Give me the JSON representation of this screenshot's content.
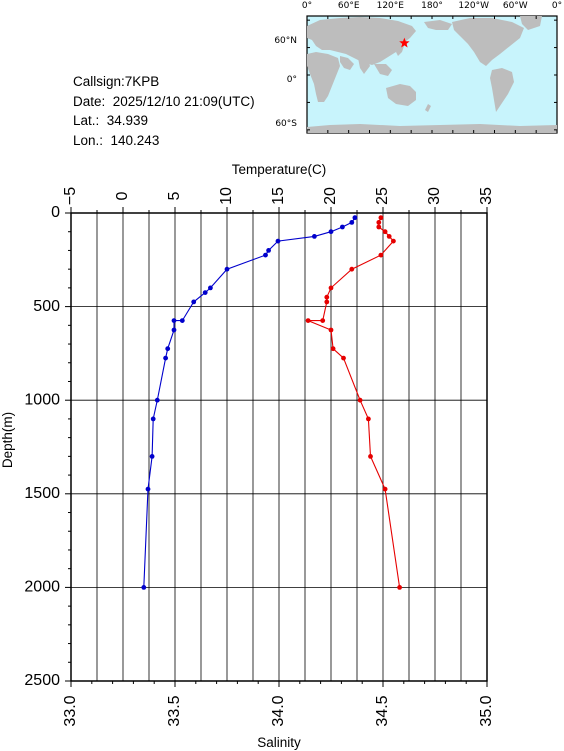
{
  "info": {
    "callsign": "Callsign:7KPB",
    "date": "Date:  2025/12/10 21:09(UTC)",
    "lat": "Lat.:  34.939",
    "lon": "Lon.:  140.243"
  },
  "map": {
    "lon_labels": [
      "0°",
      "60°E",
      "120°E",
      "180°",
      "120°W",
      "60°W",
      "0°"
    ],
    "lat_labels": [
      "60°N",
      "0°",
      "60°S"
    ],
    "ocean_color": "#c8f4fc",
    "land_color": "#bdbdbd",
    "marker_color": "#ff0000",
    "marker_lon": 140.243,
    "marker_lat": 34.939
  },
  "chart_data": {
    "type": "line",
    "title": "",
    "x_top_label": "Temperature(C)",
    "x_bottom_label": "Salinity",
    "ylabel": "Depth(m)",
    "y_reversed": true,
    "ylim": [
      0,
      2500
    ],
    "y_ticks": [
      "0",
      "500",
      "1000",
      "1500",
      "2000",
      "2500"
    ],
    "x_top_lim": [
      -5,
      35
    ],
    "x_top_ticks": [
      "−5",
      "0",
      "5",
      "10",
      "15",
      "20",
      "25",
      "30",
      "35"
    ],
    "x_bottom_lim": [
      33.0,
      35.0
    ],
    "x_bottom_ticks": [
      "33.0",
      "33.5",
      "34.0",
      "34.5",
      "35.0"
    ],
    "grid": true,
    "series": [
      {
        "axis": "temperature",
        "color": "#0000cc",
        "points": [
          {
            "t": 22.3,
            "d": 25
          },
          {
            "t": 22.0,
            "d": 50
          },
          {
            "t": 21.1,
            "d": 75
          },
          {
            "t": 20.0,
            "d": 100
          },
          {
            "t": 18.4,
            "d": 125
          },
          {
            "t": 14.9,
            "d": 150
          },
          {
            "t": 14.0,
            "d": 200
          },
          {
            "t": 13.7,
            "d": 225
          },
          {
            "t": 10.0,
            "d": 300
          },
          {
            "t": 8.4,
            "d": 400
          },
          {
            "t": 7.9,
            "d": 425
          },
          {
            "t": 6.8,
            "d": 475
          },
          {
            "t": 5.7,
            "d": 575
          },
          {
            "t": 4.9,
            "d": 575
          },
          {
            "t": 4.9,
            "d": 625
          },
          {
            "t": 4.3,
            "d": 725
          },
          {
            "t": 4.1,
            "d": 775
          },
          {
            "t": 3.3,
            "d": 1000
          },
          {
            "t": 2.9,
            "d": 1100
          },
          {
            "t": 2.8,
            "d": 1300
          },
          {
            "t": 2.4,
            "d": 1475
          },
          {
            "t": 2.0,
            "d": 2000
          }
        ]
      },
      {
        "axis": "salinity",
        "color": "#e60000",
        "points": [
          {
            "s": 34.49,
            "d": 25
          },
          {
            "s": 34.48,
            "d": 50
          },
          {
            "s": 34.48,
            "d": 75
          },
          {
            "s": 34.51,
            "d": 100
          },
          {
            "s": 34.53,
            "d": 125
          },
          {
            "s": 34.55,
            "d": 150
          },
          {
            "s": 34.49,
            "d": 225
          },
          {
            "s": 34.35,
            "d": 300
          },
          {
            "s": 34.25,
            "d": 400
          },
          {
            "s": 34.23,
            "d": 450
          },
          {
            "s": 34.23,
            "d": 475
          },
          {
            "s": 34.21,
            "d": 575
          },
          {
            "s": 34.14,
            "d": 575
          },
          {
            "s": 34.25,
            "d": 625
          },
          {
            "s": 34.26,
            "d": 725
          },
          {
            "s": 34.31,
            "d": 775
          },
          {
            "s": 34.39,
            "d": 1000
          },
          {
            "s": 34.43,
            "d": 1100
          },
          {
            "s": 34.44,
            "d": 1300
          },
          {
            "s": 34.51,
            "d": 1475
          },
          {
            "s": 34.58,
            "d": 2000
          }
        ]
      }
    ]
  }
}
